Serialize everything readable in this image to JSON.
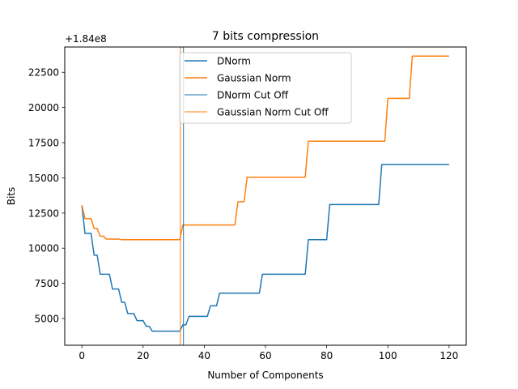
{
  "chart_data": {
    "type": "line",
    "title": "7 bits compression",
    "xlabel": "Number of Components",
    "ylabel": "Bits",
    "offset_text": "+1.84e8",
    "xlim": [
      -5.6,
      125.6
    ],
    "ylim": [
      3100,
      24300
    ],
    "xticks": [
      0,
      20,
      40,
      60,
      80,
      100,
      120
    ],
    "xtick_labels": [
      "0",
      "20",
      "40",
      "60",
      "80",
      "100",
      "120"
    ],
    "yticks": [
      5000,
      7500,
      10000,
      12500,
      15000,
      17500,
      20000,
      22500
    ],
    "ytick_labels": [
      "5000",
      "7500",
      "10000",
      "12500",
      "15000",
      "17500",
      "20000",
      "22500"
    ],
    "grid": false,
    "legend_position": "upper center",
    "series": [
      {
        "name": "DNorm",
        "color": "#1f77b4",
        "points": [
          [
            0,
            13050
          ],
          [
            1,
            11050
          ],
          [
            3,
            11050
          ],
          [
            4,
            9500
          ],
          [
            5,
            9500
          ],
          [
            6,
            8150
          ],
          [
            9,
            8150
          ],
          [
            10,
            7100
          ],
          [
            12,
            7100
          ],
          [
            13,
            6150
          ],
          [
            14,
            6150
          ],
          [
            15,
            5350
          ],
          [
            17,
            5350
          ],
          [
            18,
            4850
          ],
          [
            20,
            4850
          ],
          [
            21,
            4450
          ],
          [
            22,
            4450
          ],
          [
            23,
            4100
          ],
          [
            32,
            4100
          ],
          [
            33,
            4550
          ],
          [
            34,
            4550
          ],
          [
            35,
            5150
          ],
          [
            41,
            5150
          ],
          [
            42,
            5900
          ],
          [
            44,
            5900
          ],
          [
            45,
            6800
          ],
          [
            58,
            6800
          ],
          [
            59,
            8150
          ],
          [
            73,
            8150
          ],
          [
            74,
            10600
          ],
          [
            80,
            10600
          ],
          [
            81,
            13100
          ],
          [
            97,
            13100
          ],
          [
            98,
            15950
          ],
          [
            120,
            15950
          ]
        ]
      },
      {
        "name": "Gaussian Norm",
        "color": "#ff7f0e",
        "points": [
          [
            0,
            13050
          ],
          [
            1,
            12100
          ],
          [
            3,
            12100
          ],
          [
            4,
            11400
          ],
          [
            5,
            11400
          ],
          [
            6,
            10850
          ],
          [
            7,
            10850
          ],
          [
            8,
            10650
          ],
          [
            12,
            10650
          ],
          [
            13,
            10600
          ],
          [
            32,
            10600
          ],
          [
            33,
            11650
          ],
          [
            50,
            11650
          ],
          [
            51,
            13300
          ],
          [
            53,
            13300
          ],
          [
            54,
            15050
          ],
          [
            73,
            15050
          ],
          [
            74,
            17600
          ],
          [
            99,
            17600
          ],
          [
            100,
            20650
          ],
          [
            107,
            20650
          ],
          [
            108,
            23650
          ],
          [
            120,
            23650
          ]
        ]
      }
    ],
    "cutoffs": [
      {
        "name": "DNorm Cut Off",
        "color": "#1f77b4",
        "x": 33.2
      },
      {
        "name": "Gaussian Norm Cut Off",
        "color": "#ff7f0e",
        "x": 32.2
      }
    ]
  }
}
